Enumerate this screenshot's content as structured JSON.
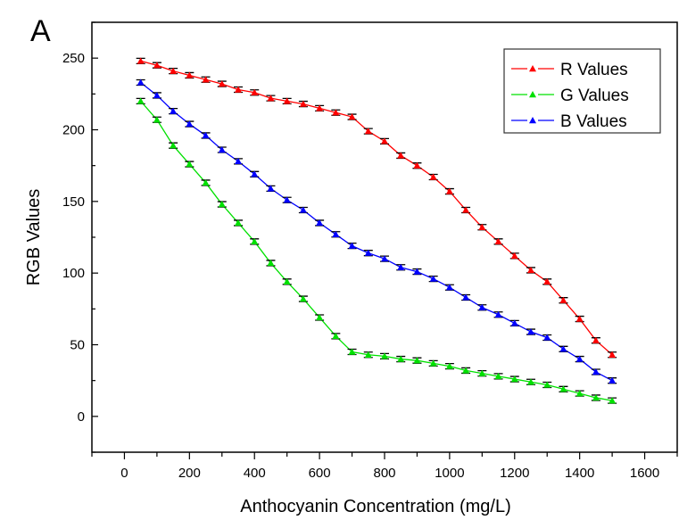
{
  "panel_label": "A",
  "chart_data": {
    "type": "line",
    "title": "",
    "xlabel": "Anthocyanin Concentration (mg/L)",
    "ylabel": "RGB Values",
    "xlim": [
      -100,
      1700
    ],
    "ylim": [
      -25,
      275
    ],
    "xticks": [
      0,
      200,
      400,
      600,
      800,
      1000,
      1200,
      1400,
      1600
    ],
    "yticks": [
      0,
      50,
      100,
      150,
      200,
      250
    ],
    "grid": false,
    "legend_position": "top-right",
    "marker": "triangle",
    "error_bars": true,
    "x": [
      50,
      100,
      150,
      200,
      250,
      300,
      350,
      400,
      450,
      500,
      550,
      600,
      650,
      700,
      750,
      800,
      850,
      900,
      950,
      1000,
      1050,
      1100,
      1150,
      1200,
      1250,
      1300,
      1350,
      1400,
      1450,
      1500
    ],
    "series": [
      {
        "name": "R Values",
        "color": "#ff0000",
        "values": [
          248,
          245,
          241,
          238,
          235,
          232,
          228,
          226,
          222,
          220,
          218,
          215,
          212,
          209,
          199,
          192,
          182,
          175,
          167,
          157,
          144,
          132,
          122,
          112,
          102,
          94,
          81,
          68,
          53,
          43
        ]
      },
      {
        "name": "G Values",
        "color": "#00e000",
        "values": [
          220,
          207,
          189,
          176,
          163,
          148,
          135,
          122,
          107,
          94,
          82,
          69,
          56,
          45,
          43,
          42,
          40,
          39,
          37,
          35,
          32,
          30,
          28,
          26,
          24,
          22,
          19,
          16,
          13,
          11
        ]
      },
      {
        "name": "B Values",
        "color": "#0000ff",
        "values": [
          233,
          224,
          213,
          204,
          196,
          186,
          178,
          169,
          159,
          151,
          144,
          135,
          127,
          119,
          114,
          110,
          104,
          101,
          96,
          90,
          83,
          76,
          71,
          65,
          59,
          55,
          47,
          40,
          31,
          25
        ]
      }
    ]
  }
}
